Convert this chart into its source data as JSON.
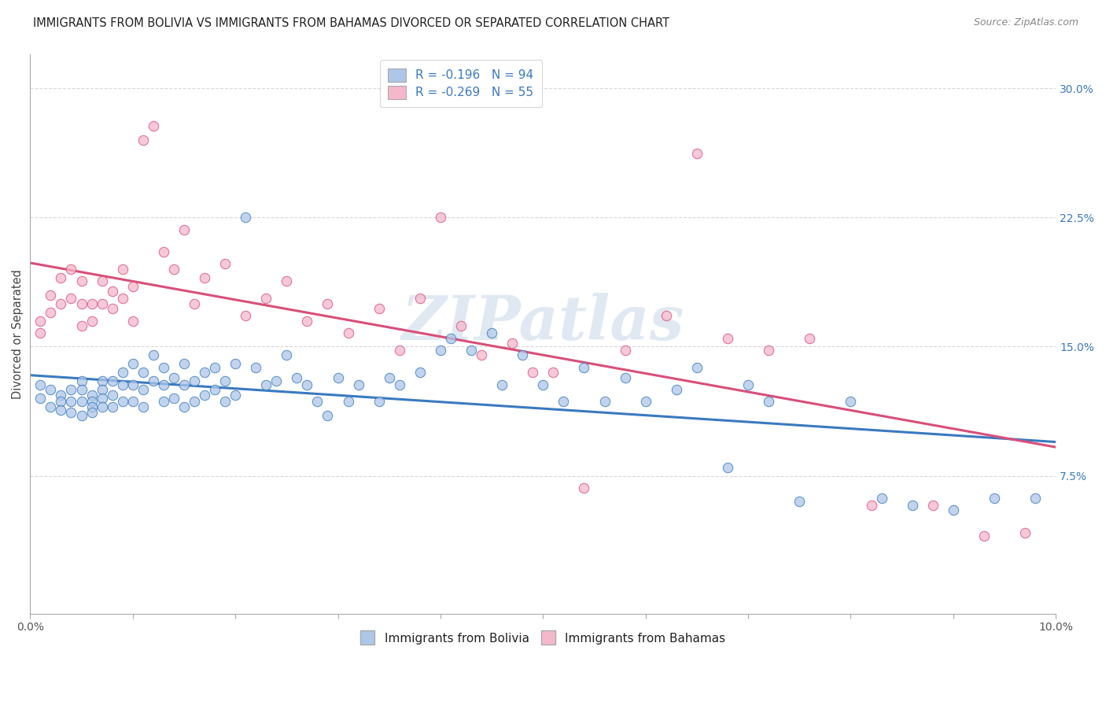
{
  "title": "IMMIGRANTS FROM BOLIVIA VS IMMIGRANTS FROM BAHAMAS DIVORCED OR SEPARATED CORRELATION CHART",
  "source": "Source: ZipAtlas.com",
  "ylabel": "Divorced or Separated",
  "xlim": [
    0.0,
    0.1
  ],
  "ylim": [
    -0.005,
    0.32
  ],
  "yticks_right": [
    0.075,
    0.15,
    0.225,
    0.3
  ],
  "ytick_labels_right": [
    "7.5%",
    "15.0%",
    "22.5%",
    "30.0%"
  ],
  "bolivia_color": "#aec6e8",
  "bahamas_color": "#f5b8cb",
  "bolivia_line_color": "#3a7abf",
  "bahamas_line_color": "#d94f7a",
  "bolivia_R": -0.196,
  "bolivia_N": 94,
  "bahamas_R": -0.269,
  "bahamas_N": 55,
  "legend_label_bolivia": "Immigrants from Bolivia",
  "legend_label_bahamas": "Immigrants from Bahamas",
  "watermark": "ZIPatlas",
  "grid_color": "#d8d8d8",
  "bolivia_x": [
    0.001,
    0.001,
    0.002,
    0.002,
    0.003,
    0.003,
    0.003,
    0.004,
    0.004,
    0.004,
    0.005,
    0.005,
    0.005,
    0.005,
    0.006,
    0.006,
    0.006,
    0.006,
    0.007,
    0.007,
    0.007,
    0.007,
    0.008,
    0.008,
    0.008,
    0.009,
    0.009,
    0.009,
    0.01,
    0.01,
    0.01,
    0.011,
    0.011,
    0.011,
    0.012,
    0.012,
    0.013,
    0.013,
    0.013,
    0.014,
    0.014,
    0.015,
    0.015,
    0.015,
    0.016,
    0.016,
    0.017,
    0.017,
    0.018,
    0.018,
    0.019,
    0.019,
    0.02,
    0.02,
    0.021,
    0.022,
    0.023,
    0.024,
    0.025,
    0.026,
    0.027,
    0.028,
    0.029,
    0.03,
    0.031,
    0.032,
    0.034,
    0.035,
    0.036,
    0.038,
    0.04,
    0.041,
    0.043,
    0.045,
    0.046,
    0.048,
    0.05,
    0.052,
    0.054,
    0.056,
    0.058,
    0.06,
    0.063,
    0.065,
    0.068,
    0.07,
    0.072,
    0.075,
    0.08,
    0.083,
    0.086,
    0.09,
    0.094,
    0.098
  ],
  "bolivia_y": [
    0.12,
    0.128,
    0.115,
    0.125,
    0.122,
    0.118,
    0.113,
    0.125,
    0.118,
    0.112,
    0.13,
    0.125,
    0.118,
    0.11,
    0.122,
    0.118,
    0.115,
    0.112,
    0.13,
    0.125,
    0.12,
    0.115,
    0.13,
    0.122,
    0.115,
    0.135,
    0.128,
    0.118,
    0.14,
    0.128,
    0.118,
    0.135,
    0.125,
    0.115,
    0.145,
    0.13,
    0.138,
    0.128,
    0.118,
    0.132,
    0.12,
    0.14,
    0.128,
    0.115,
    0.13,
    0.118,
    0.135,
    0.122,
    0.138,
    0.125,
    0.13,
    0.118,
    0.14,
    0.122,
    0.225,
    0.138,
    0.128,
    0.13,
    0.145,
    0.132,
    0.128,
    0.118,
    0.11,
    0.132,
    0.118,
    0.128,
    0.118,
    0.132,
    0.128,
    0.135,
    0.148,
    0.155,
    0.148,
    0.158,
    0.128,
    0.145,
    0.128,
    0.118,
    0.138,
    0.118,
    0.132,
    0.118,
    0.125,
    0.138,
    0.08,
    0.128,
    0.118,
    0.06,
    0.118,
    0.062,
    0.058,
    0.055,
    0.062,
    0.062
  ],
  "bahamas_x": [
    0.001,
    0.001,
    0.002,
    0.002,
    0.003,
    0.003,
    0.004,
    0.004,
    0.005,
    0.005,
    0.005,
    0.006,
    0.006,
    0.007,
    0.007,
    0.008,
    0.008,
    0.009,
    0.009,
    0.01,
    0.01,
    0.011,
    0.012,
    0.013,
    0.014,
    0.015,
    0.016,
    0.017,
    0.019,
    0.021,
    0.023,
    0.025,
    0.027,
    0.029,
    0.031,
    0.034,
    0.036,
    0.038,
    0.04,
    0.042,
    0.044,
    0.047,
    0.049,
    0.051,
    0.054,
    0.058,
    0.062,
    0.065,
    0.068,
    0.072,
    0.076,
    0.082,
    0.088,
    0.093,
    0.097
  ],
  "bahamas_y": [
    0.165,
    0.158,
    0.18,
    0.17,
    0.19,
    0.175,
    0.195,
    0.178,
    0.188,
    0.175,
    0.162,
    0.175,
    0.165,
    0.188,
    0.175,
    0.182,
    0.172,
    0.195,
    0.178,
    0.185,
    0.165,
    0.27,
    0.278,
    0.205,
    0.195,
    0.218,
    0.175,
    0.19,
    0.198,
    0.168,
    0.178,
    0.188,
    0.165,
    0.175,
    0.158,
    0.172,
    0.148,
    0.178,
    0.225,
    0.162,
    0.145,
    0.152,
    0.135,
    0.135,
    0.068,
    0.148,
    0.168,
    0.262,
    0.155,
    0.148,
    0.155,
    0.058,
    0.058,
    0.04,
    0.042
  ]
}
